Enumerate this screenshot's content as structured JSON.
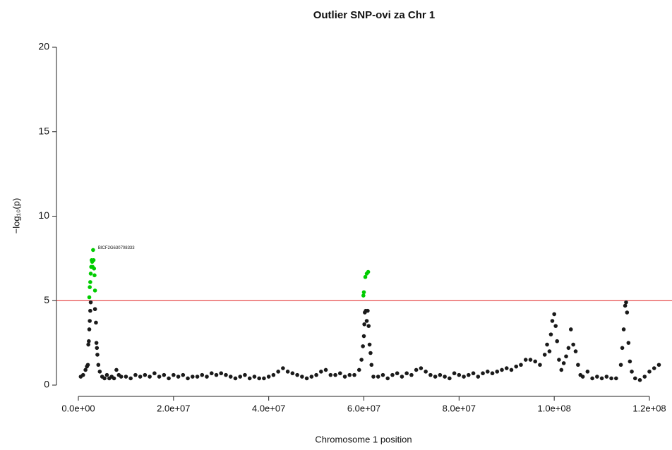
{
  "chart_data": {
    "type": "scatter",
    "title": "Outlier SNP-ovi za Chr 1",
    "xlabel": "Chromosome 1 position",
    "ylabel": "−log₁₀(p)",
    "xlim": [
      0,
      120000000
    ],
    "ylim": [
      0,
      20
    ],
    "xticks": [
      {
        "value": 0,
        "label": "0.0e+00"
      },
      {
        "value": 20000000,
        "label": "2.0e+07"
      },
      {
        "value": 40000000,
        "label": "4.0e+07"
      },
      {
        "value": 60000000,
        "label": "6.0e+07"
      },
      {
        "value": 80000000,
        "label": "8.0e+07"
      },
      {
        "value": 100000000,
        "label": "1.0e+08"
      },
      {
        "value": 120000000,
        "label": "1.2e+08"
      }
    ],
    "yticks": [
      0,
      5,
      10,
      15,
      20
    ],
    "threshold": 5,
    "threshold_color": "#e02020",
    "annotation": "BICF2G630708333",
    "series": [
      {
        "color": "#1a1a1a",
        "x": [
          500000,
          1000000,
          1500000,
          1800000,
          2000000,
          2100000,
          2200000,
          2300000,
          2400000,
          2500000,
          2600000,
          3500000,
          3700000,
          3800000,
          3900000,
          4000000,
          4200000,
          4500000,
          5000000,
          5500000,
          6000000,
          6500000,
          7000000,
          7500000,
          8000000,
          8500000,
          9000000,
          10000000,
          11000000,
          12000000,
          13000000,
          14000000,
          15000000,
          16000000,
          17000000,
          18000000,
          19000000,
          20000000,
          21000000,
          22000000,
          23000000,
          24000000,
          25000000,
          26000000,
          27000000,
          28000000,
          29000000,
          30000000,
          31000000,
          32000000,
          33000000,
          34000000,
          35000000,
          36000000,
          37000000,
          38000000,
          39000000,
          40000000,
          41000000,
          42000000,
          43000000,
          44000000,
          45000000,
          46000000,
          47000000,
          48000000,
          49000000,
          50000000,
          51000000,
          52000000,
          53000000,
          54000000,
          55000000,
          56000000,
          57000000,
          58000000,
          59000000,
          59500000,
          59800000,
          60000000,
          60100000,
          60200000,
          60400000,
          60600000,
          60800000,
          61000000,
          61200000,
          61400000,
          61600000,
          62000000,
          63000000,
          64000000,
          65000000,
          66000000,
          67000000,
          68000000,
          69000000,
          70000000,
          71000000,
          72000000,
          73000000,
          74000000,
          75000000,
          76000000,
          77000000,
          78000000,
          79000000,
          80000000,
          81000000,
          82000000,
          83000000,
          84000000,
          85000000,
          86000000,
          87000000,
          88000000,
          89000000,
          90000000,
          91000000,
          92000000,
          93000000,
          94000000,
          95000000,
          96000000,
          97000000,
          98000000,
          98500000,
          99000000,
          99300000,
          99600000,
          100000000,
          100300000,
          100600000,
          101000000,
          101500000,
          102000000,
          102500000,
          103000000,
          103500000,
          104000000,
          104500000,
          105000000,
          105500000,
          106000000,
          107000000,
          108000000,
          109000000,
          110000000,
          111000000,
          112000000,
          113000000,
          114000000,
          114300000,
          114600000,
          114900000,
          115100000,
          115300000,
          115600000,
          115900000,
          116300000,
          117000000,
          118000000,
          119000000,
          120000000,
          121000000,
          122000000
        ],
        "values": [
          0.5,
          0.6,
          0.9,
          1.1,
          1.2,
          2.4,
          2.6,
          3.3,
          3.8,
          4.4,
          4.9,
          4.5,
          3.7,
          2.5,
          2.2,
          1.8,
          1.2,
          0.8,
          0.5,
          0.4,
          0.6,
          0.4,
          0.5,
          0.4,
          0.9,
          0.6,
          0.5,
          0.5,
          0.4,
          0.6,
          0.5,
          0.6,
          0.5,
          0.7,
          0.5,
          0.6,
          0.4,
          0.6,
          0.5,
          0.6,
          0.4,
          0.5,
          0.5,
          0.6,
          0.5,
          0.7,
          0.6,
          0.7,
          0.6,
          0.5,
          0.4,
          0.5,
          0.6,
          0.4,
          0.5,
          0.4,
          0.4,
          0.5,
          0.6,
          0.8,
          1.0,
          0.8,
          0.7,
          0.6,
          0.5,
          0.4,
          0.5,
          0.6,
          0.8,
          0.9,
          0.6,
          0.6,
          0.7,
          0.5,
          0.6,
          0.6,
          0.9,
          1.5,
          2.3,
          2.9,
          3.6,
          4.3,
          4.4,
          3.8,
          4.4,
          3.5,
          2.4,
          1.9,
          1.2,
          0.5,
          0.5,
          0.6,
          0.4,
          0.6,
          0.7,
          0.5,
          0.7,
          0.6,
          0.9,
          1.0,
          0.8,
          0.6,
          0.5,
          0.6,
          0.5,
          0.4,
          0.7,
          0.6,
          0.5,
          0.6,
          0.7,
          0.5,
          0.7,
          0.8,
          0.7,
          0.8,
          0.9,
          1.0,
          0.9,
          1.1,
          1.2,
          1.5,
          1.5,
          1.4,
          1.2,
          1.8,
          2.4,
          2.0,
          3.0,
          3.8,
          4.2,
          3.5,
          2.6,
          1.5,
          0.9,
          1.3,
          1.7,
          2.2,
          3.3,
          2.4,
          2.0,
          1.2,
          0.6,
          0.5,
          0.8,
          0.4,
          0.5,
          0.4,
          0.5,
          0.4,
          0.4,
          1.2,
          2.2,
          3.3,
          4.7,
          4.9,
          4.3,
          2.5,
          1.4,
          0.8,
          0.4,
          0.3,
          0.5,
          0.8,
          1.0,
          1.2
        ]
      },
      {
        "color": "#00cc00",
        "x": [
          2300000,
          2400000,
          2500000,
          2600000,
          2700000,
          2800000,
          2900000,
          3000000,
          3100000,
          3200000,
          3300000,
          3400000,
          3500000,
          59900000,
          60000000,
          60300000,
          60600000,
          60900000
        ],
        "values": [
          5.2,
          5.8,
          6.1,
          6.6,
          7.0,
          7.4,
          7.3,
          7.0,
          8.0,
          7.4,
          6.9,
          6.5,
          5.6,
          5.3,
          5.5,
          6.4,
          6.6,
          6.7
        ]
      }
    ]
  }
}
